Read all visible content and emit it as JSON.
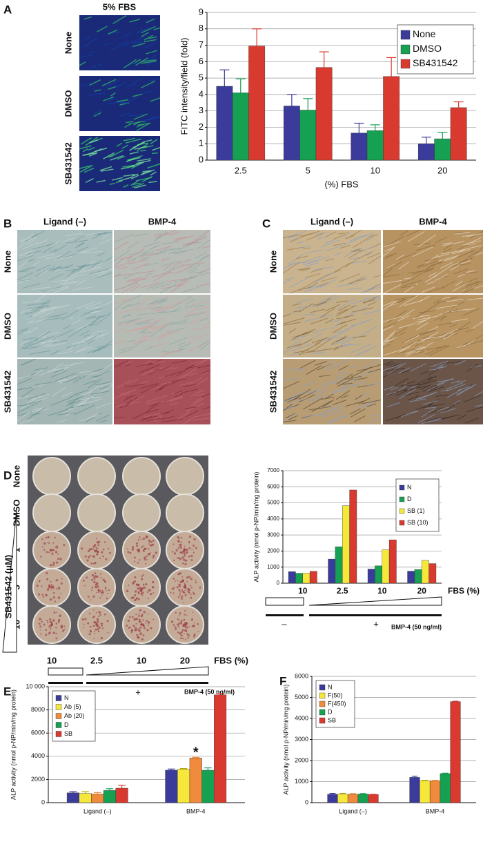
{
  "panel_labels": [
    "A",
    "B",
    "C",
    "D",
    "E",
    "F"
  ],
  "panel_a": {
    "image_title": "5% FBS",
    "row_labels": [
      "None",
      "DMSO",
      "SB431542"
    ]
  },
  "panel_b": {
    "column_labels": [
      "Ligand (–)",
      "BMP-4"
    ],
    "row_labels": [
      "None",
      "DMSO",
      "SB431542"
    ]
  },
  "panel_c": {
    "column_labels": [
      "Ligand (–)",
      "BMP-4"
    ],
    "row_labels": [
      "None",
      "DMSO",
      "SB431542"
    ]
  },
  "panel_d": {
    "row_labels": [
      "None",
      "DMSO",
      "1",
      "5",
      "10"
    ],
    "axis_label": "SB431542 (μM)",
    "column_labels": [
      "10",
      "2.5",
      "10",
      "20"
    ],
    "fbs_label": "FBS (%)",
    "minus": "–",
    "plus": "+",
    "bmp_label": "BMP-4 (50 ng/ml)"
  },
  "chart_data": [
    {
      "type": "bar",
      "ylabel": "FITC intensity/field (fold)",
      "xlabel": "(%) FBS",
      "categories": [
        "2.5",
        "5",
        "10",
        "20"
      ],
      "series": [
        {
          "name": "None",
          "color": "#3b3b9c",
          "values": [
            4.5,
            3.3,
            1.65,
            1.0
          ],
          "errors": [
            1.0,
            0.7,
            0.6,
            0.4
          ]
        },
        {
          "name": "DMSO",
          "color": "#15a052",
          "values": [
            4.1,
            3.05,
            1.8,
            1.3
          ],
          "errors": [
            0.85,
            0.7,
            0.35,
            0.4
          ]
        },
        {
          "name": "SB431542",
          "color": "#d93a2f",
          "values": [
            6.95,
            5.65,
            5.1,
            3.2
          ],
          "errors": [
            1.05,
            0.95,
            1.15,
            0.35
          ]
        }
      ],
      "ylim": [
        0,
        9
      ],
      "yticks": [
        0,
        1,
        2,
        3,
        4,
        5,
        6,
        7,
        8,
        9
      ],
      "grid": true,
      "legend": "upper right"
    },
    {
      "type": "bar",
      "ylabel": "ALP activity (nmol p-NP/min/mg protein)",
      "categories": [
        "10",
        "2.5",
        "10",
        "20"
      ],
      "series": [
        {
          "name": "N",
          "color": "#3b3b9c",
          "values": [
            720,
            1500,
            880,
            750
          ]
        },
        {
          "name": "D",
          "color": "#15a052",
          "values": [
            620,
            2270,
            1080,
            850
          ]
        },
        {
          "name": "SB (1)",
          "color": "#f5e83a",
          "values": [
            620,
            4820,
            2080,
            1420
          ]
        },
        {
          "name": "SB (10)",
          "color": "#d93a2f",
          "values": [
            740,
            5800,
            2700,
            1220
          ]
        }
      ],
      "ylim": [
        0,
        7000
      ],
      "yticks": [
        0,
        1000,
        2000,
        3000,
        4000,
        5000,
        6000,
        7000
      ],
      "grid": true,
      "legend": "upper right",
      "annotations": [
        "FBS (%)",
        "–",
        "+",
        "BMP-4 (50 ng/ml)"
      ]
    },
    {
      "type": "bar",
      "ylabel": "ALP activity (nmol p-NP/min/mg protein)",
      "categories": [
        "Ligand (–)",
        "BMP-4"
      ],
      "series": [
        {
          "name": "N",
          "color": "#3b3b9c",
          "values": [
            850,
            2800
          ],
          "errors": [
            100,
            100
          ]
        },
        {
          "name": "Ab (5)",
          "color": "#f5e83a",
          "values": [
            800,
            2880
          ],
          "errors": [
            150,
            60
          ]
        },
        {
          "name": "Ab (20)",
          "color": "#f08a3c",
          "values": [
            750,
            3850
          ],
          "errors": [
            120,
            60
          ]
        },
        {
          "name": "D",
          "color": "#15a052",
          "values": [
            1050,
            2800
          ],
          "errors": [
            150,
            200
          ]
        },
        {
          "name": "SB",
          "color": "#d93a2f",
          "values": [
            1250,
            9300
          ],
          "errors": [
            250,
            100
          ]
        }
      ],
      "ylim": [
        0,
        10000
      ],
      "yticks": [
        0,
        2000,
        4000,
        6000,
        8000,
        {
          "value": 10000,
          "label": "10 000"
        }
      ],
      "grid": true,
      "legend": "upper left",
      "annotations": [
        "*"
      ]
    },
    {
      "type": "bar",
      "ylabel": "ALP activity (nmol p-NP/min/mg protein)",
      "categories": [
        "Ligand (–)",
        "BMP-4"
      ],
      "series": [
        {
          "name": "N",
          "color": "#3b3b9c",
          "values": [
            400,
            1200
          ],
          "errors": [
            40,
            60
          ]
        },
        {
          "name": "F(50)",
          "color": "#f5e83a",
          "values": [
            400,
            1040
          ],
          "errors": [
            40,
            20
          ]
        },
        {
          "name": "F(450)",
          "color": "#f08a3c",
          "values": [
            400,
            1040
          ],
          "errors": [
            30,
            20
          ]
        },
        {
          "name": "D",
          "color": "#15a052",
          "values": [
            410,
            1380
          ],
          "errors": [
            20,
            20
          ]
        },
        {
          "name": "SB",
          "color": "#d93a2f",
          "values": [
            390,
            4800
          ],
          "errors": [
            10,
            20
          ]
        }
      ],
      "ylim": [
        0,
        6000
      ],
      "yticks": [
        0,
        1000,
        2000,
        3000,
        4000,
        5000,
        6000
      ],
      "grid": true,
      "legend": "upper left"
    }
  ]
}
